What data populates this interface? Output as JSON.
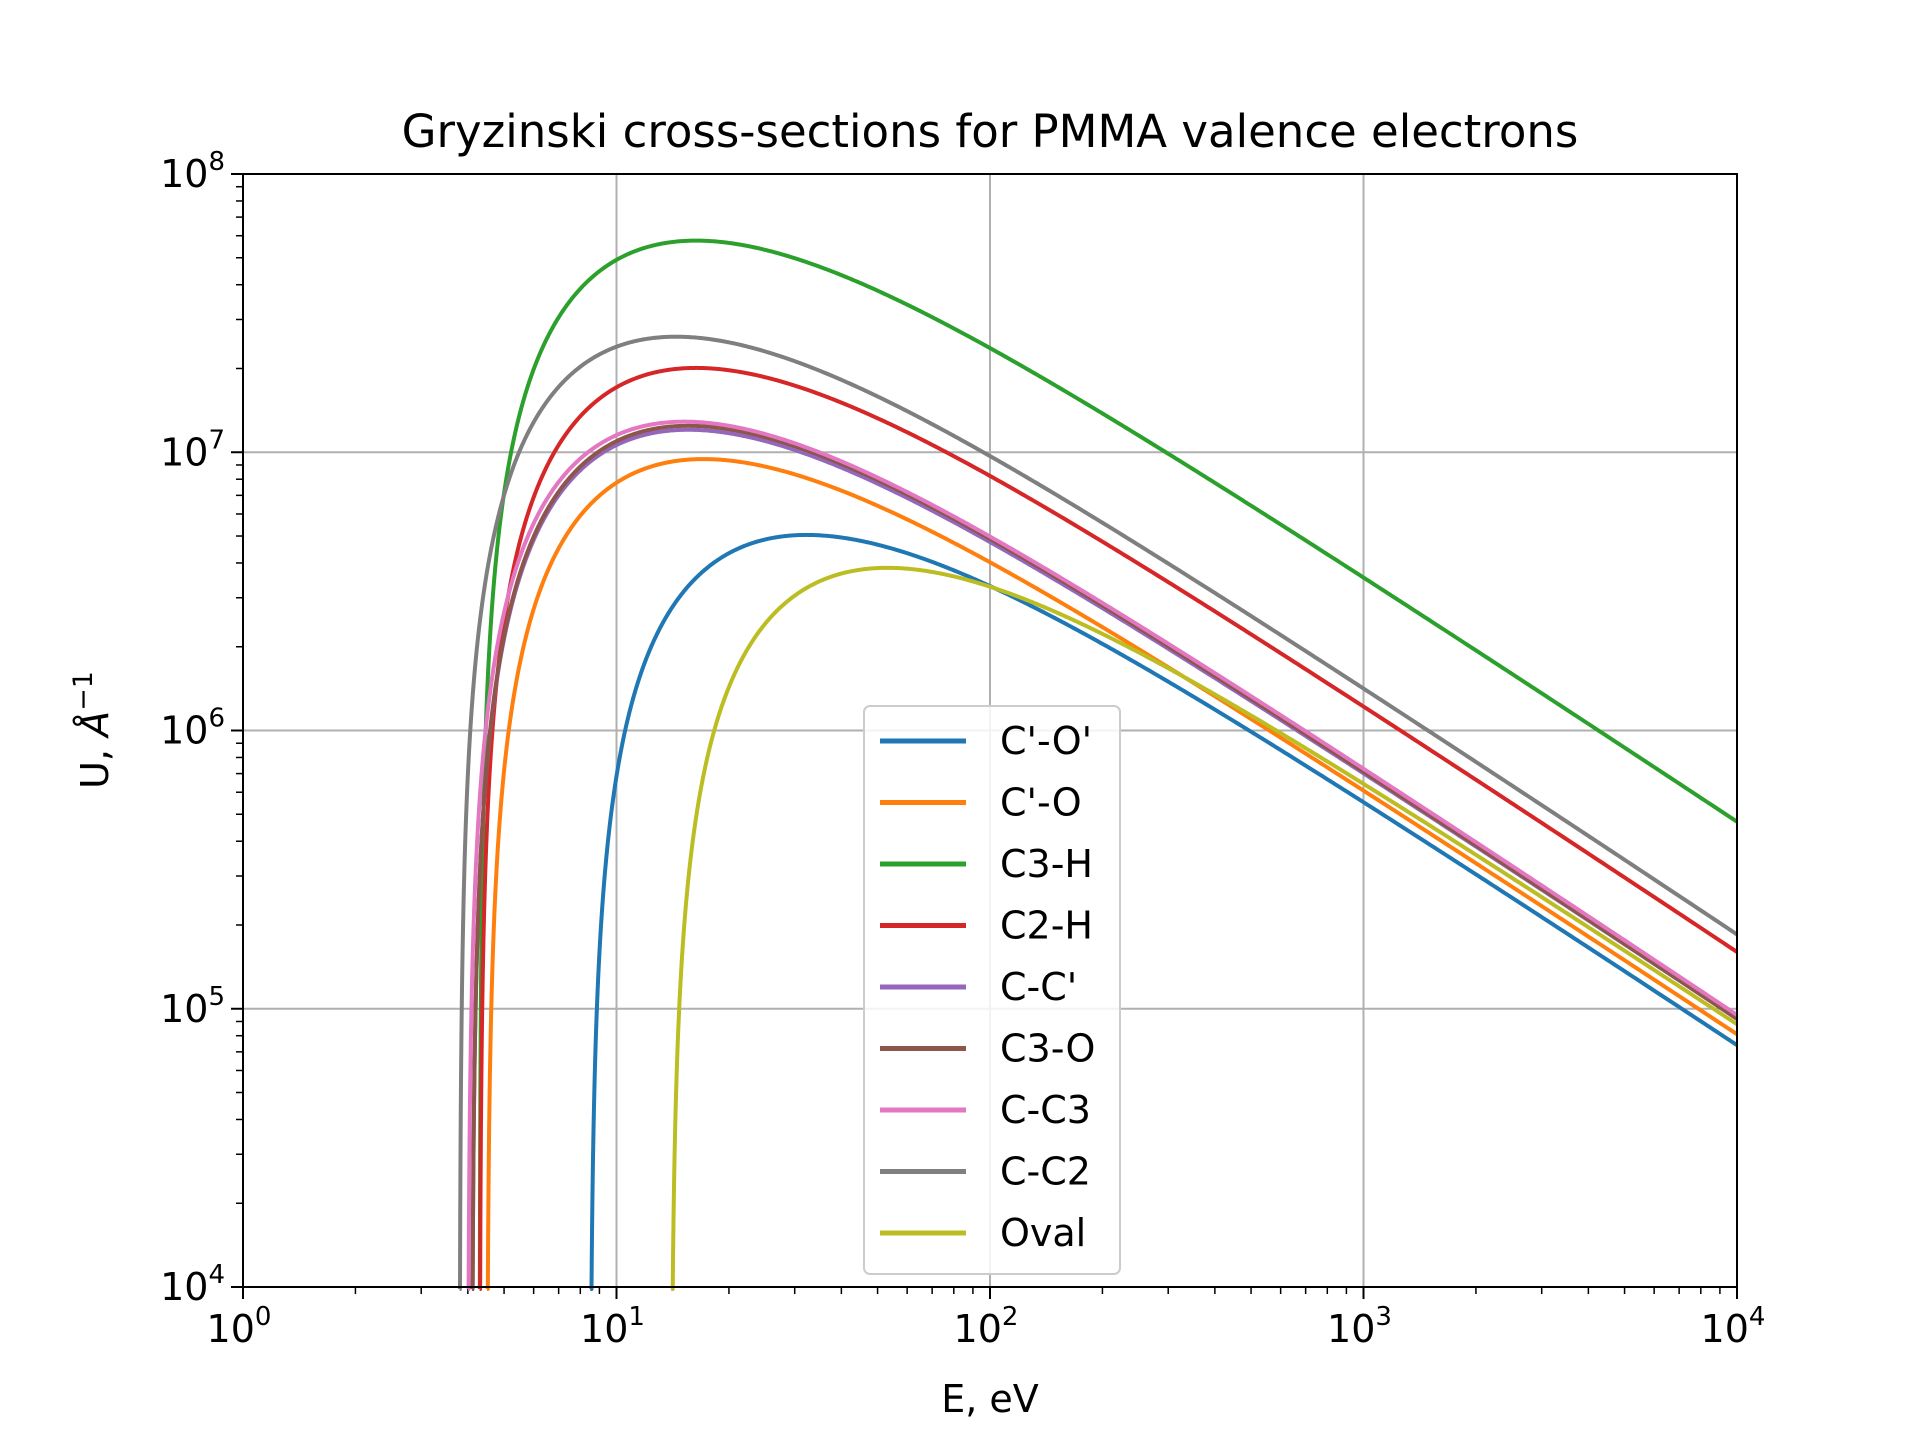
{
  "chart_data": {
    "type": "line",
    "title": "Gryzinski cross-sections for PMMA valence electrons",
    "xlabel": "E, eV",
    "ylabel_prefix": "U, ",
    "ylabel_symbol": "Å",
    "ylabel_exponent": "−1",
    "xscale": "log",
    "yscale": "log",
    "xlim": [
      1,
      10000
    ],
    "ylim": [
      10000,
      100000000
    ],
    "grid": true,
    "legend_position": "lower-center",
    "x_ticks": [
      {
        "base": "10",
        "exp": "0",
        "value": 1
      },
      {
        "base": "10",
        "exp": "1",
        "value": 10
      },
      {
        "base": "10",
        "exp": "2",
        "value": 100
      },
      {
        "base": "10",
        "exp": "3",
        "value": 1000
      },
      {
        "base": "10",
        "exp": "4",
        "value": 10000
      }
    ],
    "y_ticks": [
      {
        "base": "10",
        "exp": "4",
        "value": 10000
      },
      {
        "base": "10",
        "exp": "5",
        "value": 100000
      },
      {
        "base": "10",
        "exp": "6",
        "value": 1000000
      },
      {
        "base": "10",
        "exp": "7",
        "value": 10000000
      },
      {
        "base": "10",
        "exp": "8",
        "value": 100000000
      }
    ],
    "series": [
      {
        "name": "C'-O'",
        "color": "#1f77b4",
        "threshold_eV": 8.5,
        "peak_x_eV": 37,
        "peak_y": 5000000,
        "end_y": 74000
      },
      {
        "name": "C'-O",
        "color": "#ff7f0e",
        "threshold_eV": 4.5,
        "peak_x_eV": 19,
        "peak_y": 9400000,
        "end_y": 81000
      },
      {
        "name": "C3-H",
        "color": "#2ca02c",
        "threshold_eV": 4.3,
        "peak_x_eV": 19,
        "peak_y": 57000000,
        "end_y": 470000
      },
      {
        "name": "C2-H",
        "color": "#d62728",
        "threshold_eV": 4.3,
        "peak_x_eV": 18,
        "peak_y": 20000000,
        "end_y": 160000
      },
      {
        "name": "C-C'",
        "color": "#9467bd",
        "threshold_eV": 4.1,
        "peak_x_eV": 17,
        "peak_y": 12000000,
        "end_y": 92000
      },
      {
        "name": "C3-O",
        "color": "#8c564b",
        "threshold_eV": 4.1,
        "peak_x_eV": 17,
        "peak_y": 12400000,
        "end_y": 92000
      },
      {
        "name": "C-C3",
        "color": "#e377c2",
        "threshold_eV": 4.0,
        "peak_x_eV": 17,
        "peak_y": 12800000,
        "end_y": 95000
      },
      {
        "name": "C-C2",
        "color": "#7f7f7f",
        "threshold_eV": 3.8,
        "peak_x_eV": 15,
        "peak_y": 26000000,
        "end_y": 185000
      },
      {
        "name": "Oval",
        "color": "#bcbd22",
        "threshold_eV": 14,
        "peak_x_eV": 62,
        "peak_y": 3800000,
        "end_y": 88000
      }
    ]
  }
}
